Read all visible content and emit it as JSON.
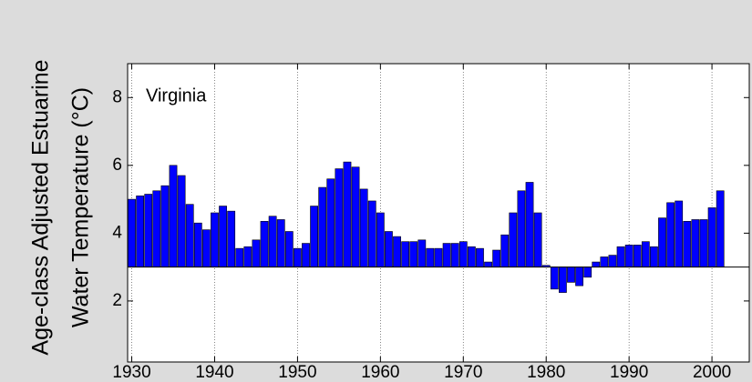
{
  "chart_data": {
    "type": "bar",
    "ylabel": [
      "Age-class Adjusted Estuarine",
      "Water Temperature (°C)"
    ],
    "annotation": "Virginia",
    "x": [
      1930,
      1931,
      1932,
      1933,
      1934,
      1935,
      1936,
      1937,
      1938,
      1939,
      1940,
      1941,
      1942,
      1943,
      1944,
      1945,
      1946,
      1947,
      1948,
      1949,
      1950,
      1951,
      1952,
      1953,
      1954,
      1955,
      1956,
      1957,
      1958,
      1959,
      1960,
      1961,
      1962,
      1963,
      1964,
      1965,
      1966,
      1967,
      1968,
      1969,
      1970,
      1971,
      1972,
      1973,
      1974,
      1975,
      1976,
      1977,
      1978,
      1979,
      1980,
      1981,
      1982,
      1983,
      1984,
      1985,
      1986,
      1987,
      1988,
      1989,
      1990,
      1991,
      1992,
      1993,
      1994,
      1995,
      1996,
      1997,
      1998,
      1999,
      2000,
      2001
    ],
    "values": [
      5.0,
      5.1,
      5.15,
      5.25,
      5.4,
      6.0,
      5.7,
      4.85,
      4.3,
      4.1,
      4.6,
      4.8,
      4.65,
      3.55,
      3.6,
      3.8,
      4.35,
      4.5,
      4.4,
      4.05,
      3.55,
      3.7,
      4.8,
      5.35,
      5.6,
      5.9,
      6.1,
      5.95,
      5.3,
      4.95,
      4.6,
      4.05,
      3.9,
      3.75,
      3.75,
      3.8,
      3.55,
      3.55,
      3.7,
      3.7,
      3.75,
      3.6,
      3.55,
      3.15,
      3.5,
      3.95,
      4.6,
      5.25,
      5.5,
      4.6,
      3.05,
      2.35,
      2.25,
      2.55,
      2.45,
      2.7,
      3.15,
      3.3,
      3.35,
      3.6,
      3.65,
      3.65,
      3.75,
      3.6,
      4.45,
      4.9,
      4.95,
      4.35,
      4.4,
      4.4,
      4.75,
      5.25
    ],
    "baseline": 3,
    "color": "#0000ff",
    "xlim": [
      1929.5,
      2004.5
    ],
    "xticks": [
      1930,
      1940,
      1950,
      1960,
      1970,
      1980,
      1990,
      2000
    ],
    "ylim": [
      0.2,
      9
    ],
    "yticks": [
      2,
      4,
      6,
      8
    ],
    "grid": true
  }
}
